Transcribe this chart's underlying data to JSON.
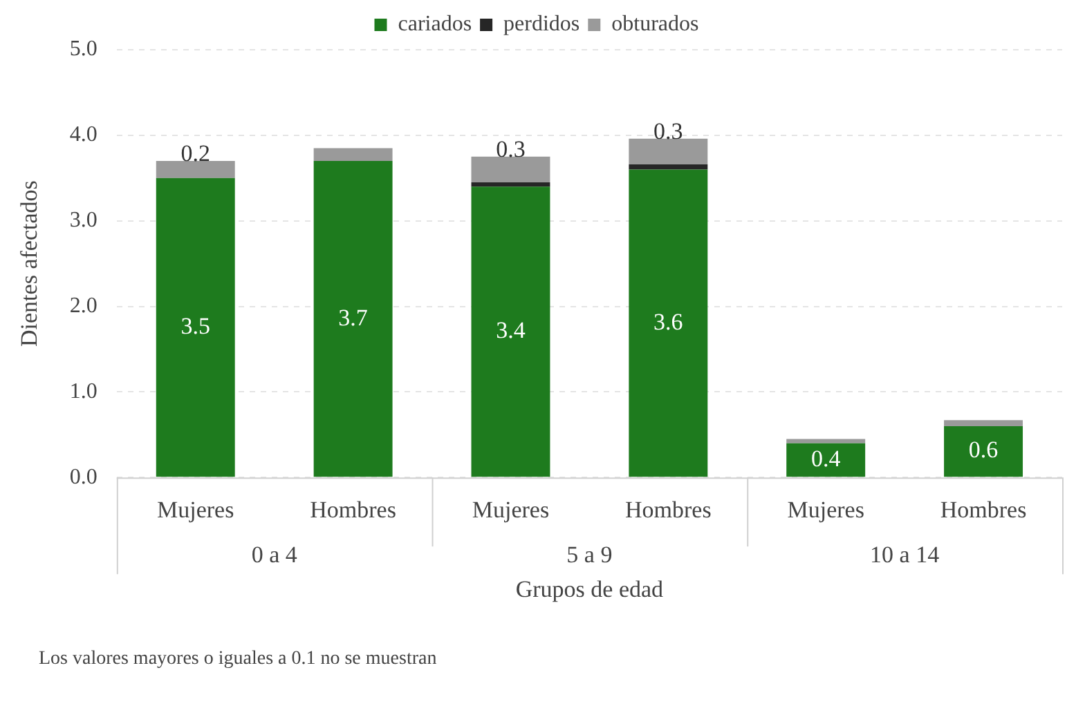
{
  "chart_data": {
    "type": "bar",
    "stacked": true,
    "xlabel": "Grupos de edad",
    "ylabel": "Dientes afectados",
    "categories": [
      "Mujeres",
      "Hombres",
      "Mujeres",
      "Hombres",
      "Mujeres",
      "Hombres"
    ],
    "series": [
      {
        "name": "cariados",
        "color": "#1e7b1e",
        "values": [
          3.5,
          3.7,
          3.4,
          3.6,
          0.4,
          0.6
        ],
        "value_labels": [
          "3.5",
          "3.7",
          "3.4",
          "3.6",
          "0.4",
          "0.6"
        ]
      },
      {
        "name": "perdidos",
        "color": "#262626",
        "values": [
          0,
          0,
          0.05,
          0.06,
          0,
          0
        ]
      },
      {
        "name": "obturados",
        "color": "#9a9a9a",
        "values": [
          0.2,
          0.15,
          0.3,
          0.3,
          0.05,
          0.07
        ],
        "value_labels": [
          "0.2",
          null,
          "0.3",
          "0.3",
          null,
          null
        ]
      }
    ],
    "ylim": [
      0,
      5
    ],
    "yticks": [
      {
        "value": 0,
        "label": "0.0"
      },
      {
        "value": 1,
        "label": "1.0"
      },
      {
        "value": 2,
        "label": "2.0"
      },
      {
        "value": 3,
        "label": "3.0"
      },
      {
        "value": 4,
        "label": "4.0"
      },
      {
        "value": 5,
        "label": "5.0"
      }
    ],
    "grid": "y",
    "legend": "top",
    "annotations": [
      "0 a 4",
      "5 a 9",
      "10 a 14",
      "Los valores mayores o iguales a 0.1 no se muestran"
    ]
  }
}
